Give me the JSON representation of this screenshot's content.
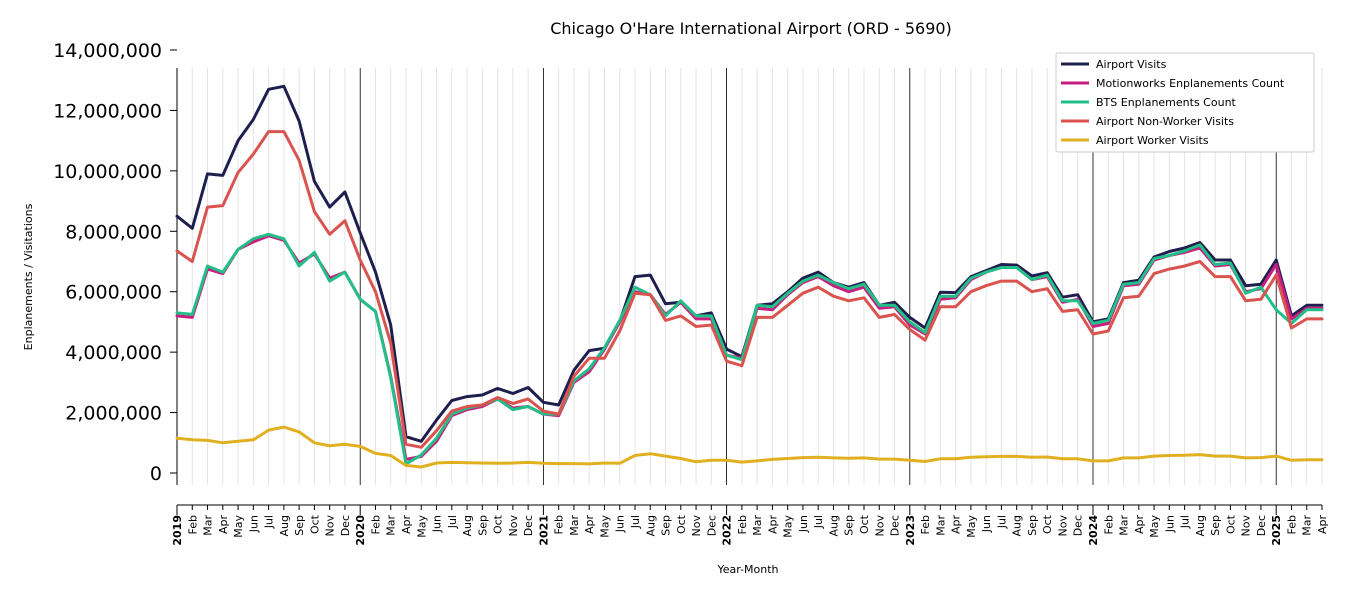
{
  "chart_data": {
    "type": "line",
    "title": "Chicago O'Hare International Airport (ORD - 5690)",
    "xlabel": "Year-Month",
    "ylabel": "Enplanements / Visitations",
    "ylim": [
      0,
      14000000
    ],
    "yticks": [
      0,
      2000000,
      4000000,
      6000000,
      8000000,
      10000000,
      12000000,
      14000000
    ],
    "ytick_labels": [
      "0",
      "2,000,000",
      "4,000,000",
      "6,000,000",
      "8,000,000",
      "10,000,000",
      "12,000,000",
      "14,000,000"
    ],
    "legend_position": "top-right",
    "grid": "vertical monthly gridlines, darker lines at each January",
    "x_start": "2019-01",
    "x_labels": [
      "2019",
      "Feb",
      "Mar",
      "Apr",
      "May",
      "Jun",
      "Jul",
      "Aug",
      "Sep",
      "Oct",
      "Nov",
      "Dec",
      "2020",
      "Feb",
      "Mar",
      "Apr",
      "May",
      "Jun",
      "Jul",
      "Aug",
      "Sep",
      "Oct",
      "Nov",
      "Dec",
      "2021",
      "Feb",
      "Mar",
      "Apr",
      "May",
      "Jun",
      "Jul",
      "Aug",
      "Sep",
      "Oct",
      "Nov",
      "Dec",
      "2022",
      "Feb",
      "Mar",
      "Apr",
      "May",
      "Jun",
      "Jul",
      "Aug",
      "Sep",
      "Oct",
      "Nov",
      "Dec",
      "2023",
      "Feb",
      "Mar",
      "Apr",
      "May",
      "Jun",
      "Jul",
      "Aug",
      "Sep",
      "Oct",
      "Nov",
      "Dec",
      "2024",
      "Feb",
      "Mar",
      "Apr",
      "May",
      "Jun",
      "Jul",
      "Aug",
      "Sep",
      "Oct",
      "Nov",
      "Dec",
      "2025",
      "Feb",
      "Mar",
      "Apr"
    ],
    "series": [
      {
        "name": "Airport Visits",
        "color": "#1f1f4f",
        "values": [
          8500000,
          8100000,
          9900000,
          9850000,
          11000000,
          11700000,
          12700000,
          12800000,
          11650000,
          9650000,
          8800000,
          9300000,
          7950000,
          6650000,
          4900000,
          1200000,
          1050000,
          1750000,
          2400000,
          2530000,
          2580000,
          2800000,
          2630000,
          2830000,
          2340000,
          2250000,
          3400000,
          4050000,
          4130000,
          5000000,
          6500000,
          6550000,
          5600000,
          5650000,
          5200000,
          5300000,
          4100000,
          3850000,
          5550000,
          5600000,
          6000000,
          6450000,
          6650000,
          6300000,
          6150000,
          6300000,
          5550000,
          5650000,
          5150000,
          4800000,
          5980000,
          5970000,
          6500000,
          6700000,
          6900000,
          6880000,
          6520000,
          6630000,
          5820000,
          5900000,
          5000000,
          5100000,
          6300000,
          6380000,
          7150000,
          7330000,
          7450000,
          7630000,
          7050000,
          7050000,
          6200000,
          6250000,
          7050000,
          5200000,
          5550000,
          5550000
        ]
      },
      {
        "name": "Motionworks Enplanements Count",
        "color": "#c71f7f",
        "values": [
          5200000,
          5150000,
          6750000,
          6600000,
          7400000,
          7650000,
          7850000,
          7700000,
          6950000,
          7250000,
          6450000,
          6650000,
          5750000,
          5350000,
          3200000,
          450000,
          550000,
          1050000,
          1900000,
          2100000,
          2200000,
          2450000,
          2150000,
          2200000,
          1950000,
          1900000,
          3000000,
          3350000,
          4100000,
          5000000,
          6000000,
          5900000,
          5250000,
          5650000,
          5100000,
          5100000,
          3900000,
          3800000,
          5450000,
          5400000,
          5900000,
          6300000,
          6500000,
          6200000,
          6000000,
          6150000,
          5450000,
          5500000,
          4900000,
          4600000,
          5750000,
          5800000,
          6400000,
          6650000,
          6800000,
          6800000,
          6400000,
          6500000,
          5650000,
          5750000,
          4850000,
          4950000,
          6200000,
          6250000,
          7050000,
          7200000,
          7300000,
          7450000,
          6850000,
          6900000,
          6000000,
          6100000,
          6900000,
          5100000,
          5450000,
          5450000
        ]
      },
      {
        "name": "BTS Enplanements Count",
        "color": "#22c088",
        "values": [
          5300000,
          5250000,
          6850000,
          6650000,
          7400000,
          7750000,
          7900000,
          7750000,
          6850000,
          7300000,
          6350000,
          6650000,
          5750000,
          5350000,
          3150000,
          300000,
          600000,
          1150000,
          1950000,
          2150000,
          2250000,
          2450000,
          2100000,
          2200000,
          1950000,
          1950000,
          3050000,
          3450000,
          4150000,
          5050000,
          6150000,
          5900000,
          5200000,
          5700000,
          5200000,
          5200000,
          3900000,
          3750000,
          5550000,
          5500000,
          5950000,
          6350000,
          6550000,
          6300000,
          6100000,
          6250000,
          5550000,
          5550000,
          5000000,
          4650000,
          5850000,
          5850000,
          6450000,
          6650000,
          6800000,
          6800000,
          6400000,
          6550000,
          5700000,
          5700000,
          4950000,
          5050000,
          6250000,
          6300000,
          7100000,
          7200000,
          7350000,
          7550000,
          6900000,
          6950000,
          5950000,
          6150000,
          5400000,
          4950000,
          5400000,
          5400000
        ]
      },
      {
        "name": "Airport Non-Worker Visits",
        "color": "#d9534f",
        "values": [
          7350000,
          7000000,
          8800000,
          8850000,
          9950000,
          10550000,
          11300000,
          11300000,
          10350000,
          8650000,
          7900000,
          8350000,
          7050000,
          6000000,
          4300000,
          950000,
          850000,
          1400000,
          2050000,
          2200000,
          2250000,
          2500000,
          2300000,
          2450000,
          2050000,
          1950000,
          3200000,
          3800000,
          3800000,
          4700000,
          5950000,
          5900000,
          5050000,
          5200000,
          4850000,
          4900000,
          3700000,
          3550000,
          5150000,
          5150000,
          5550000,
          5950000,
          6150000,
          5850000,
          5700000,
          5800000,
          5150000,
          5250000,
          4750000,
          4400000,
          5500000,
          5500000,
          6000000,
          6200000,
          6350000,
          6350000,
          6000000,
          6100000,
          5350000,
          5400000,
          4600000,
          4700000,
          5800000,
          5850000,
          6600000,
          6750000,
          6850000,
          7000000,
          6500000,
          6500000,
          5700000,
          5750000,
          6550000,
          4800000,
          5100000,
          5100000
        ]
      },
      {
        "name": "Airport Worker Visits",
        "color": "#e0b020",
        "values": [
          1150000,
          1100000,
          1080000,
          1000000,
          1050000,
          1100000,
          1420000,
          1520000,
          1360000,
          1000000,
          900000,
          950000,
          880000,
          650000,
          580000,
          250000,
          200000,
          330000,
          350000,
          340000,
          330000,
          320000,
          330000,
          350000,
          320000,
          310000,
          310000,
          300000,
          330000,
          320000,
          580000,
          640000,
          560000,
          480000,
          370000,
          420000,
          420000,
          360000,
          400000,
          450000,
          480000,
          510000,
          520000,
          500000,
          490000,
          500000,
          460000,
          460000,
          420000,
          380000,
          470000,
          470000,
          520000,
          540000,
          550000,
          550000,
          520000,
          530000,
          470000,
          470000,
          400000,
          400000,
          500000,
          500000,
          560000,
          580000,
          590000,
          610000,
          560000,
          560000,
          500000,
          510000,
          560000,
          420000,
          440000,
          440000
        ]
      }
    ]
  }
}
